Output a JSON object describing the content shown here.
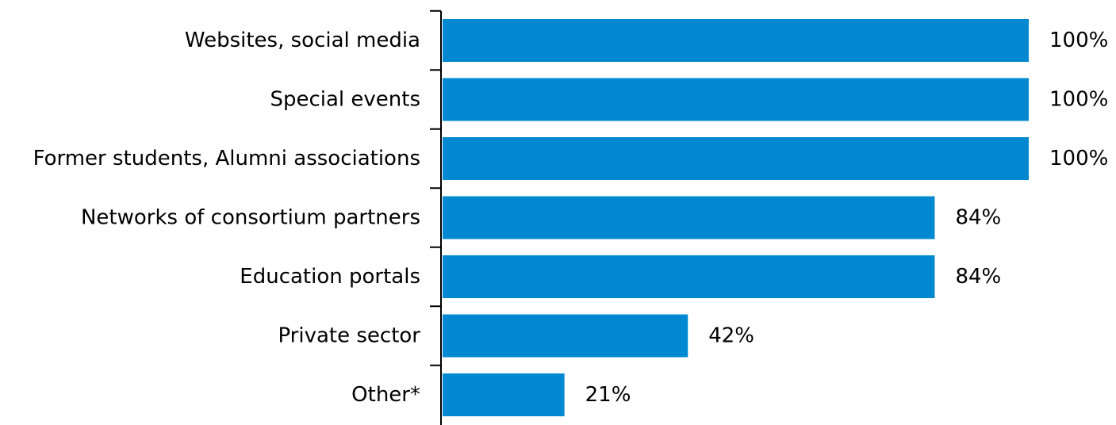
{
  "chart_data": {
    "type": "bar",
    "orientation": "horizontal",
    "categories": [
      "Websites, social media",
      "Special events",
      "Former students, Alumni associations",
      "Networks of consortium partners",
      "Education portals",
      "Private sector",
      "Other*"
    ],
    "values": [
      100,
      100,
      100,
      84,
      84,
      42,
      21
    ],
    "value_labels": [
      "100%",
      "100%",
      "100%",
      "84%",
      "84%",
      "42%",
      "21%"
    ],
    "xlim": [
      0,
      100
    ],
    "bar_color": "#0088d1",
    "axis_color": "#000000",
    "grid": false,
    "legend": "none"
  }
}
